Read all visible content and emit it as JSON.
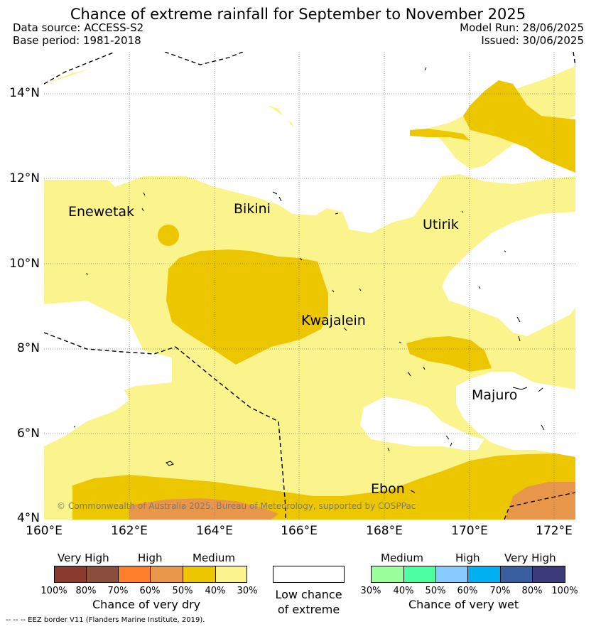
{
  "title": "Chance of extreme rainfall for September to November 2025",
  "header": {
    "data_source": "Data source: ACCESS-S2",
    "base_period": "Base period: 1981-2018",
    "model_run": "Model Run: 28/06/2025",
    "issued": "Issued: 30/06/2025"
  },
  "map": {
    "lat_ticks": [
      "14°N",
      "12°N",
      "10°N",
      "8°N",
      "6°N",
      "4°N"
    ],
    "lon_ticks": [
      "160°E",
      "162°E",
      "164°E",
      "166°E",
      "168°E",
      "170°E",
      "172°E"
    ],
    "places": {
      "enewetak": "Enewetak",
      "bikini": "Bikini",
      "utirik": "Utirik",
      "kwajalein": "Kwajalein",
      "majuro": "Majuro",
      "ebon": "Ebon"
    },
    "copyright": "© Commonwealth of Australia 2025, Bureau of Meteorology, supported by COSPPac",
    "colors": {
      "dry_30_40": "#fbf48c",
      "dry_40_50": "#ecc700",
      "dry_50_60": "#e8964a",
      "low_chance": "#ffffff",
      "eez_border": "#000000"
    }
  },
  "legend": {
    "dry": {
      "levels": [
        "Very High",
        "High",
        "Medium"
      ],
      "percents": [
        "100%",
        "80%",
        "70%",
        "60%",
        "50%",
        "40%",
        "30%"
      ],
      "colors": [
        "#8b3a2e",
        "#8b4d3c",
        "#ff7f2a",
        "#e8964a",
        "#ecc700",
        "#fbf48c"
      ],
      "title": "Chance of very dry"
    },
    "low": {
      "line1": "Low chance",
      "line2": "of extreme",
      "color": "#ffffff"
    },
    "wet": {
      "levels": [
        "Medium",
        "High",
        "Very High"
      ],
      "percents": [
        "30%",
        "40%",
        "50%",
        "60%",
        "70%",
        "80%",
        "100%"
      ],
      "colors": [
        "#9bff9b",
        "#4cffa0",
        "#88ccff",
        "#00b0f0",
        "#3a5f9f",
        "#3c3a78"
      ],
      "title": "Chance of very wet"
    }
  },
  "footnote": "--  --  -- EEZ border V11 (Flanders Marine Institute, 2019)."
}
